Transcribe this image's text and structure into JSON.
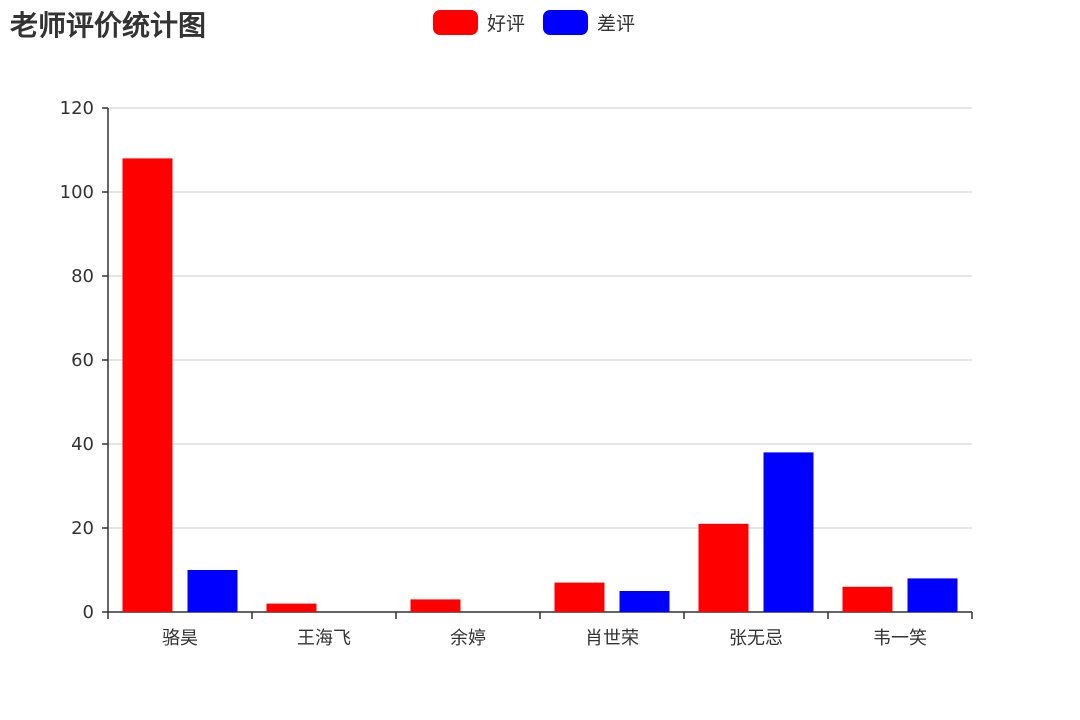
{
  "chart_data": {
    "type": "bar",
    "title": "老师评价统计图",
    "categories": [
      "骆昊",
      "王海飞",
      "余婷",
      "肖世荣",
      "张无忌",
      "韦一笑"
    ],
    "series": [
      {
        "name": "好评",
        "color": "#ff0000",
        "values": [
          108,
          2,
          3,
          7,
          21,
          6
        ]
      },
      {
        "name": "差评",
        "color": "#0000ff",
        "values": [
          10,
          0,
          0,
          5,
          38,
          8
        ]
      }
    ],
    "ylim": [
      0,
      120
    ],
    "yticks": [
      0,
      20,
      40,
      60,
      80,
      100,
      120
    ],
    "grid": true,
    "legend_position": "top-center"
  }
}
